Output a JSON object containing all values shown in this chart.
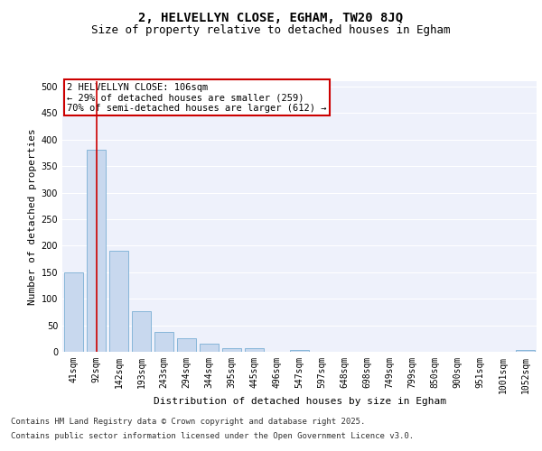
{
  "title_line1": "2, HELVELLYN CLOSE, EGHAM, TW20 8JQ",
  "title_line2": "Size of property relative to detached houses in Egham",
  "xlabel": "Distribution of detached houses by size in Egham",
  "ylabel": "Number of detached properties",
  "categories": [
    "41sqm",
    "92sqm",
    "142sqm",
    "193sqm",
    "243sqm",
    "294sqm",
    "344sqm",
    "395sqm",
    "445sqm",
    "496sqm",
    "547sqm",
    "597sqm",
    "648sqm",
    "698sqm",
    "749sqm",
    "799sqm",
    "850sqm",
    "900sqm",
    "951sqm",
    "1001sqm",
    "1052sqm"
  ],
  "values": [
    150,
    380,
    190,
    76,
    38,
    25,
    15,
    6,
    6,
    0,
    4,
    0,
    0,
    0,
    0,
    0,
    0,
    0,
    0,
    0,
    4
  ],
  "bar_color": "#c8d8ee",
  "bar_edge_color": "#7aafd4",
  "vline_x": 1,
  "vline_color": "#cc0000",
  "annotation_text": "2 HELVELLYN CLOSE: 106sqm\n← 29% of detached houses are smaller (259)\n70% of semi-detached houses are larger (612) →",
  "annotation_box_color": "#cc0000",
  "ylim": [
    0,
    510
  ],
  "yticks": [
    0,
    50,
    100,
    150,
    200,
    250,
    300,
    350,
    400,
    450,
    500
  ],
  "background_color": "#eef1fb",
  "grid_color": "#ffffff",
  "footer_line1": "Contains HM Land Registry data © Crown copyright and database right 2025.",
  "footer_line2": "Contains public sector information licensed under the Open Government Licence v3.0.",
  "title_fontsize": 10,
  "subtitle_fontsize": 9,
  "axis_label_fontsize": 8,
  "tick_fontsize": 7,
  "annotation_fontsize": 7.5,
  "footer_fontsize": 6.5
}
